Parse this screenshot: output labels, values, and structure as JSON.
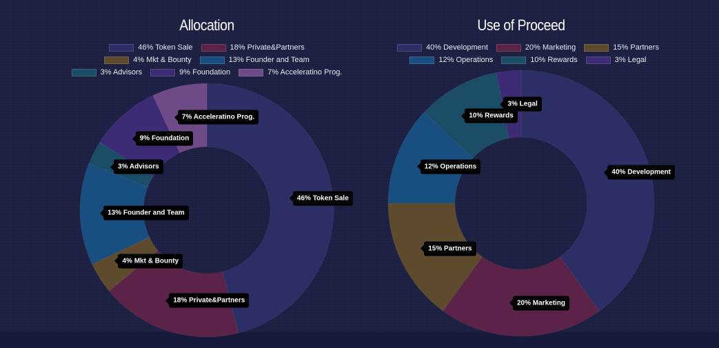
{
  "chart_data": [
    {
      "type": "pie",
      "title": "Allocation",
      "slices": [
        {
          "label": "46% Token Sale",
          "value": 46,
          "color": "#2b2f66"
        },
        {
          "label": "18% Private&Partners",
          "value": 18,
          "color": "#5a2347"
        },
        {
          "label": "4% Mkt & Bounty",
          "value": 4,
          "color": "#5e4a2c"
        },
        {
          "label": "13% Founder and Team",
          "value": 13,
          "color": "#194e80"
        },
        {
          "label": "3% Advisors",
          "value": 3,
          "color": "#1b4d66"
        },
        {
          "label": "9% Foundation",
          "value": 9,
          "color": "#3d2b75"
        },
        {
          "label": "7% Acceleratino Prog.",
          "value": 7,
          "color": "#6e4b86"
        }
      ]
    },
    {
      "type": "pie",
      "title": "Use of Proceed",
      "slices": [
        {
          "label": "40% Development",
          "value": 40,
          "color": "#2b2f66"
        },
        {
          "label": "20% Marketing",
          "value": 20,
          "color": "#5a2347"
        },
        {
          "label": "15% Partners",
          "value": 15,
          "color": "#5e4a2c"
        },
        {
          "label": "12% Operations",
          "value": 12,
          "color": "#194e80"
        },
        {
          "label": "10% Rewards",
          "value": 10,
          "color": "#1b4d66"
        },
        {
          "label": "3% Legal",
          "value": 3,
          "color": "#3d2b75"
        }
      ]
    }
  ]
}
